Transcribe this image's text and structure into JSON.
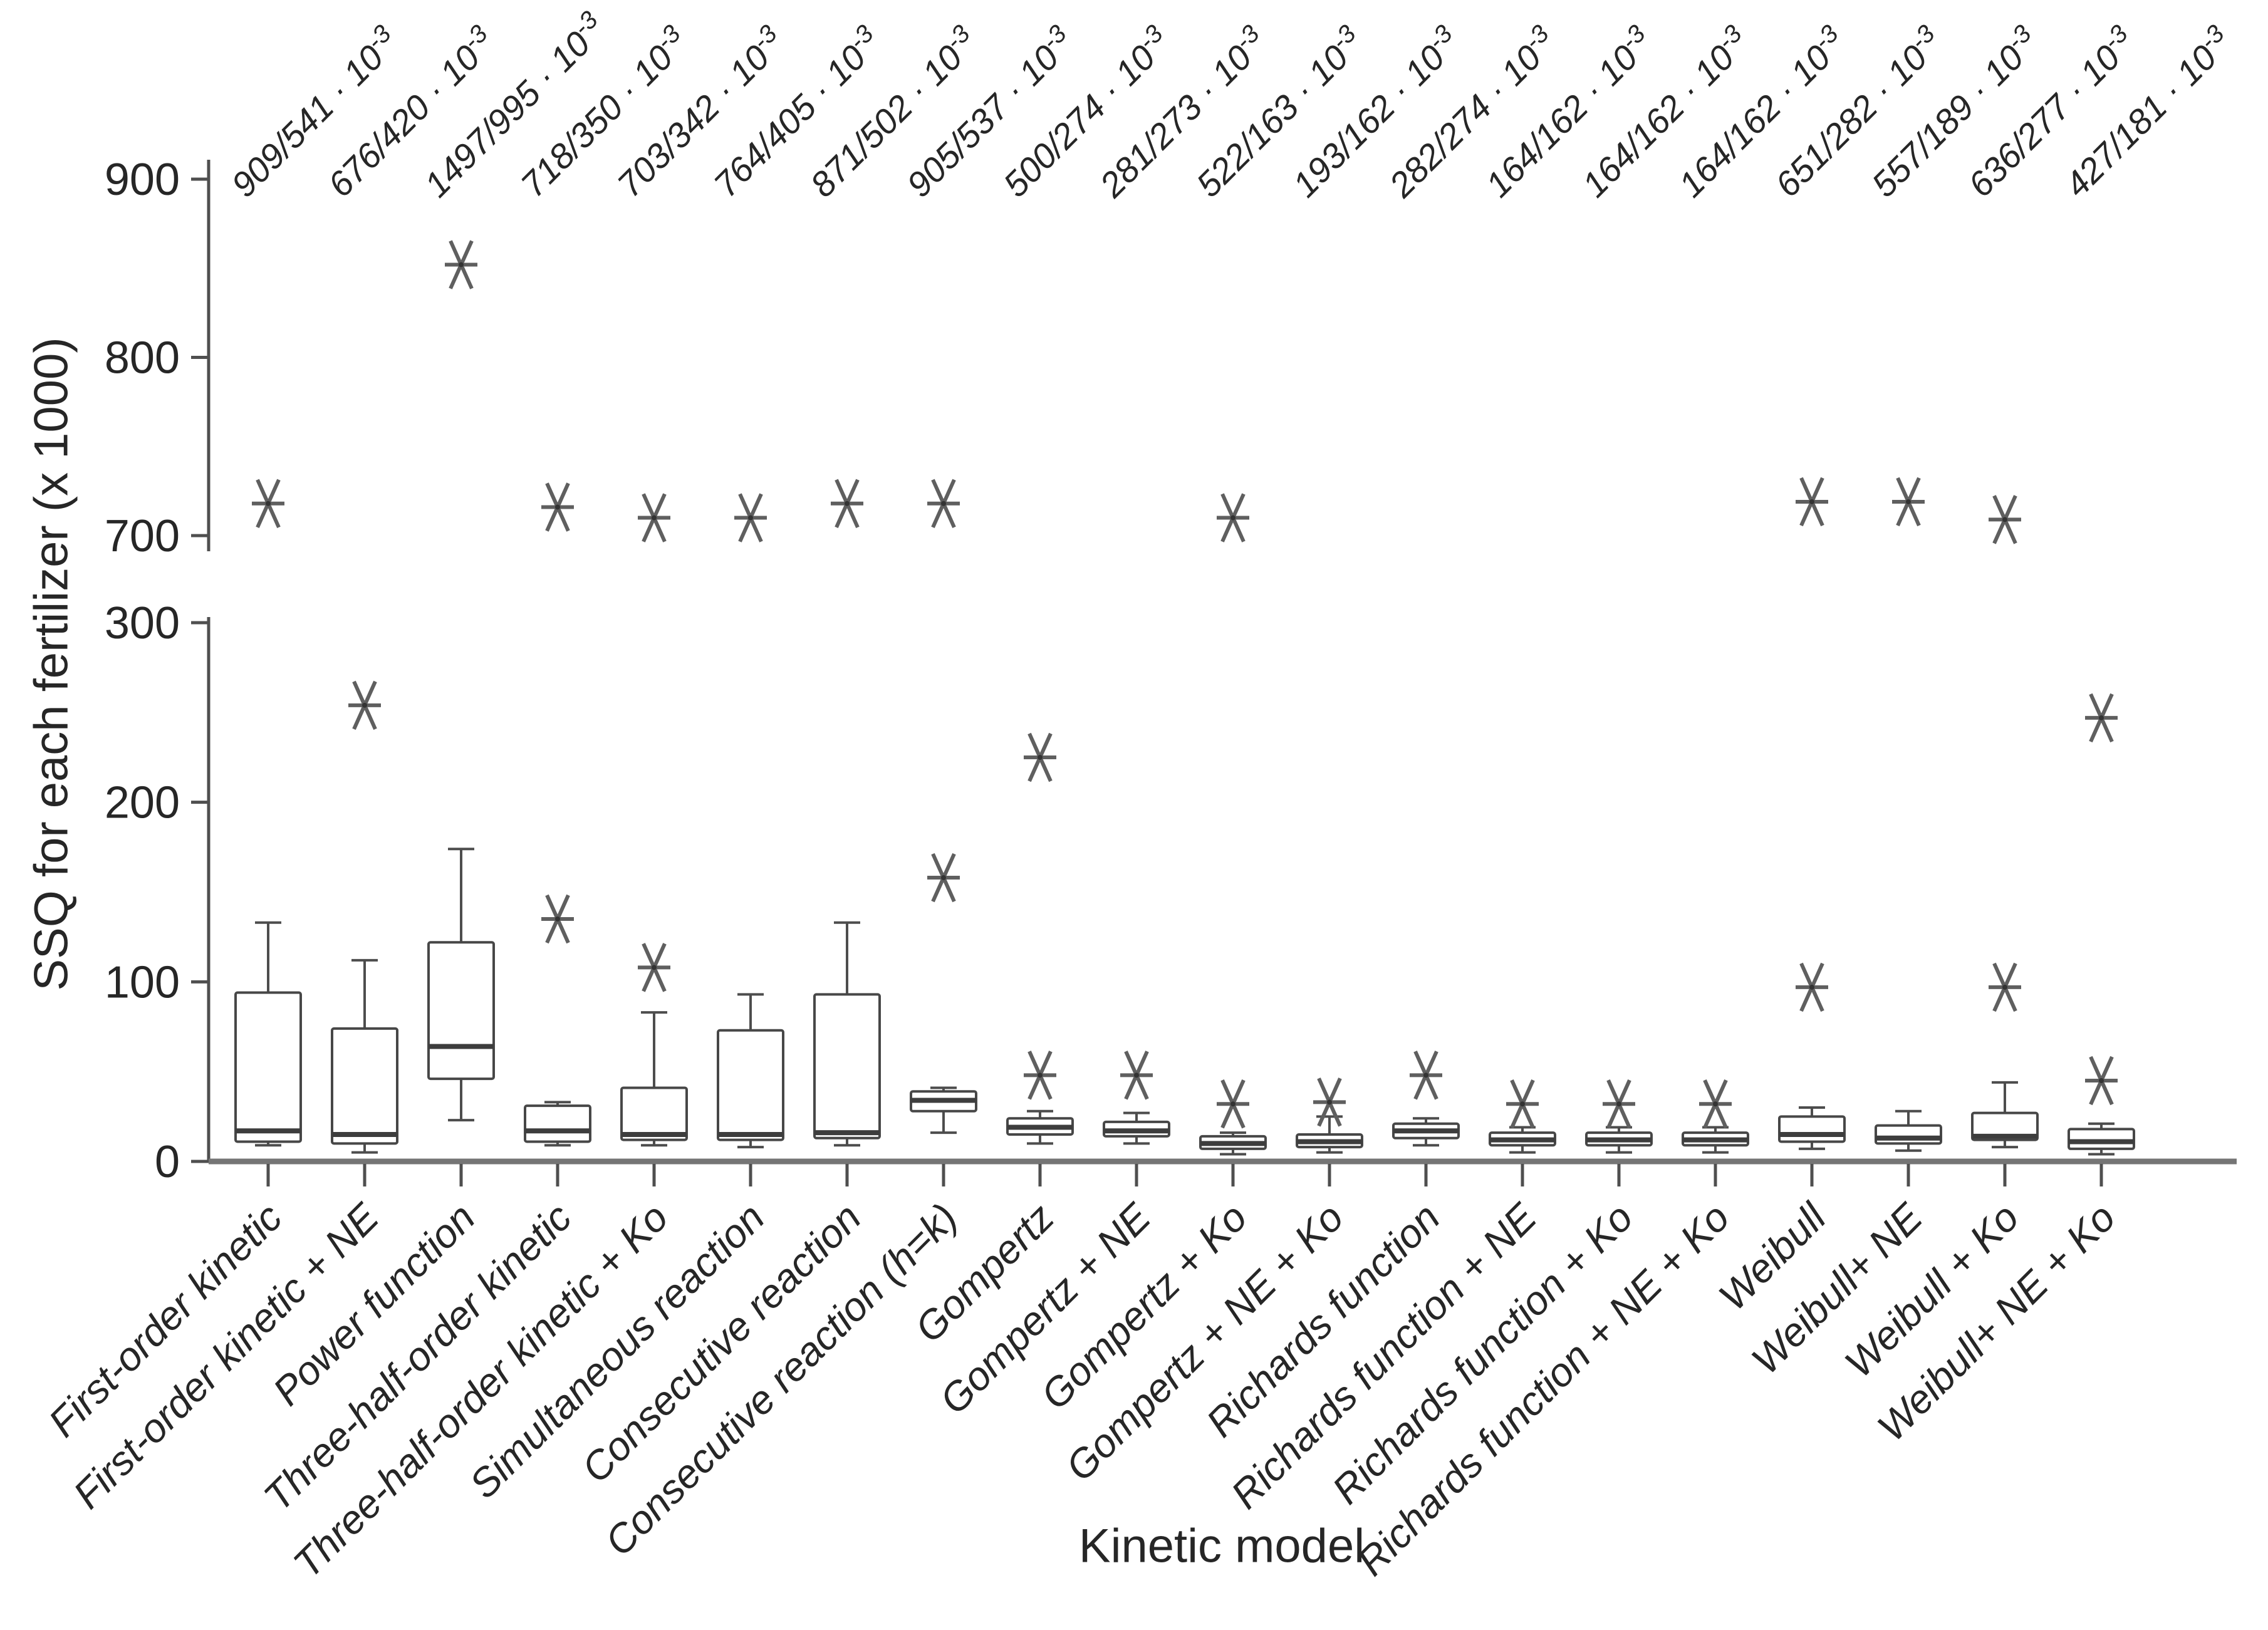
{
  "chart_data": {
    "type": "boxplot",
    "title": "",
    "xlabel": "Kinetic model",
    "ylabel": "SSQ for each fertilizer (x 1000)",
    "legend": "none",
    "grid": "off",
    "y_axis": {
      "broken": true,
      "lower_range": [
        0,
        300
      ],
      "upper_range": [
        700,
        900
      ],
      "lower_ticks": [
        0,
        100,
        200,
        300
      ],
      "upper_ticks": [
        700,
        800,
        900
      ]
    },
    "colors": {
      "box_stroke": "#474747",
      "median_stroke": "#3d3d3d",
      "whisker_stroke": "#4d4d4d",
      "axis_line": "#757575",
      "y_axis_line": "#4f4f4f",
      "tick_stroke": "#4f4f4f",
      "outlier_marker": "#5f5f5f",
      "text": "#262626",
      "background": "#ffffff"
    },
    "outlier_marker_glyph": "six-spoke-asterisk",
    "series": [
      {
        "category": "First-order kinetic",
        "top_label": "909/541 · 10^-3",
        "box": {
          "low": 9,
          "q1": 11,
          "median": 17,
          "q3": 94,
          "high": 133
        },
        "outliers": [
          718
        ]
      },
      {
        "category": "First-order kinetic + NE",
        "top_label": "676/420 · 10^-3",
        "box": {
          "low": 5,
          "q1": 10,
          "median": 15,
          "q3": 74,
          "high": 112
        },
        "outliers": [
          254
        ]
      },
      {
        "category": "Power function",
        "top_label": "1497/995 · 10^-3",
        "box": {
          "low": 23,
          "q1": 46,
          "median": 64,
          "q3": 122,
          "high": 174
        },
        "outliers": [
          852
        ]
      },
      {
        "category": "Three-half-order kinetic",
        "top_label": "718/350 · 10^-3",
        "box": {
          "low": 9,
          "q1": 11,
          "median": 17,
          "q3": 31,
          "high": 33
        },
        "outliers": [
          135,
          716
        ]
      },
      {
        "category": "Three-half-order kinetic + Ko",
        "top_label": "703/342 · 10^-3",
        "box": {
          "low": 9,
          "q1": 12,
          "median": 15,
          "q3": 41,
          "high": 83
        },
        "outliers": [
          108,
          710
        ]
      },
      {
        "category": "Simultaneous reaction",
        "top_label": "764/405 · 10^-3",
        "box": {
          "low": 8,
          "q1": 12,
          "median": 15,
          "q3": 73,
          "high": 93
        },
        "outliers": [
          710
        ]
      },
      {
        "category": "Consecutive reaction",
        "top_label": "871/502 · 10^-3",
        "box": {
          "low": 9,
          "q1": 13,
          "median": 16,
          "q3": 93,
          "high": 133
        },
        "outliers": [
          718
        ]
      },
      {
        "category": "Consecutive reaction (h=k)",
        "top_label": "905/537 · 10^-3",
        "box": {
          "low": 16,
          "q1": 28,
          "median": 34,
          "q3": 39,
          "high": 41
        },
        "outliers": [
          158,
          718
        ]
      },
      {
        "category": "Gompertz",
        "top_label": "500/274 · 10^-3",
        "box": {
          "low": 10,
          "q1": 15,
          "median": 19,
          "q3": 24,
          "high": 28
        },
        "outliers": [
          48,
          225
        ]
      },
      {
        "category": "Gompertz + NE",
        "top_label": "281/273 · 10^-3",
        "box": {
          "low": 10,
          "q1": 14,
          "median": 17,
          "q3": 22,
          "high": 27
        },
        "outliers": [
          48
        ]
      },
      {
        "category": "Gompertz + Ko",
        "top_label": "522/163 · 10^-3",
        "box": {
          "low": 4,
          "q1": 7,
          "median": 10,
          "q3": 14,
          "high": 16
        },
        "outliers": [
          32,
          710
        ]
      },
      {
        "category": "Gompertz + NE + Ko",
        "top_label": "193/162 · 10^-3",
        "box": {
          "low": 5,
          "q1": 8,
          "median": 11,
          "q3": 15,
          "high": 25
        },
        "outliers": [
          33
        ]
      },
      {
        "category": "Richards function",
        "top_label": "282/274 · 10^-3",
        "box": {
          "low": 9,
          "q1": 13,
          "median": 17,
          "q3": 21,
          "high": 24
        },
        "outliers": [
          48
        ]
      },
      {
        "category": "Richards function + NE",
        "top_label": "164/162 · 10^-3",
        "box": {
          "low": 5,
          "q1": 9,
          "median": 12,
          "q3": 16,
          "high": 19
        },
        "outliers": [
          32
        ]
      },
      {
        "category": "Richards function + Ko",
        "top_label": "164/162 · 10^-3",
        "box": {
          "low": 5,
          "q1": 9,
          "median": 12,
          "q3": 16,
          "high": 19
        },
        "outliers": [
          32
        ]
      },
      {
        "category": "Richards function + NE + Ko",
        "top_label": "164/162 · 10^-3",
        "box": {
          "low": 5,
          "q1": 9,
          "median": 12,
          "q3": 16,
          "high": 19
        },
        "outliers": [
          32
        ]
      },
      {
        "category": "Weibull",
        "top_label": "651/282 · 10^-3",
        "box": {
          "low": 7,
          "q1": 11,
          "median": 15,
          "q3": 25,
          "high": 30
        },
        "outliers": [
          97,
          719
        ]
      },
      {
        "category": "Weibull+ NE",
        "top_label": "557/189 · 10^-3",
        "box": {
          "low": 6,
          "q1": 10,
          "median": 13,
          "q3": 20,
          "high": 28
        },
        "outliers": [
          719
        ]
      },
      {
        "category": "Weibull + Ko",
        "top_label": "636/277 · 10^-3",
        "box": {
          "low": 8,
          "q1": 12,
          "median": 14,
          "q3": 27,
          "high": 44
        },
        "outliers": [
          97,
          709
        ]
      },
      {
        "category": "Weibull+ NE + Ko",
        "top_label": "427/181 · 10^-3",
        "box": {
          "low": 4,
          "q1": 7,
          "median": 11,
          "q3": 18,
          "high": 21
        },
        "outliers": [
          45,
          247
        ]
      }
    ]
  }
}
